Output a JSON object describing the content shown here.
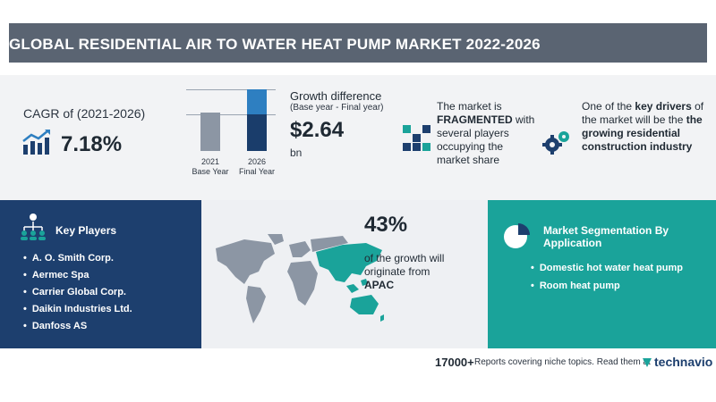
{
  "banner": {
    "title": "GLOBAL RESIDENTIAL AIR TO WATER HEAT PUMP MARKET 2022-2026"
  },
  "cagr": {
    "label": "CAGR of (2021-2026)",
    "value": "7.18%",
    "icon": "growth-chart-icon"
  },
  "growth": {
    "bars": [
      {
        "year": "2021",
        "label": "Base Year"
      },
      {
        "year": "2026",
        "label": "Final Year"
      }
    ],
    "title": "Growth difference",
    "subtitle": "(Base year - Final year)",
    "value": "$2.64",
    "unit": "bn"
  },
  "fragmented": {
    "icon": "blocks-icon",
    "line1": "The market is",
    "keyword": "FRAGMENTED",
    "line2": "with several players occupying the market share"
  },
  "drivers": {
    "icon": "gears-icon",
    "prefix": "One of the",
    "keyword": "key drivers",
    "middle": "of the market will be the",
    "driver": "the growing residential construction industry"
  },
  "key_players": {
    "icon": "network-people-icon",
    "title": "Key Players",
    "items": [
      "A. O. Smith Corp.",
      "Aermec Spa",
      "Carrier Global Corp.",
      "Daikin Industries Ltd.",
      "Danfoss AS"
    ]
  },
  "region": {
    "percent": "43%",
    "text": "of the growth will originate from",
    "name": "APAC",
    "map_icon": "world-map-icon"
  },
  "segmentation": {
    "icon": "pie-chart-icon",
    "title": "Market Segmentation By Application",
    "items": [
      "Domestic hot water heat pump",
      "Room heat pump"
    ]
  },
  "footer": {
    "count": "17000+",
    "text": "Reports covering niche topics. Read them at",
    "logo": "technavio"
  },
  "colors": {
    "banner": "#5a6472",
    "navy": "#1d3f6e",
    "teal": "#1aa39a",
    "blue": "#2e7fc1",
    "grey_bar": "#8c96a4"
  }
}
